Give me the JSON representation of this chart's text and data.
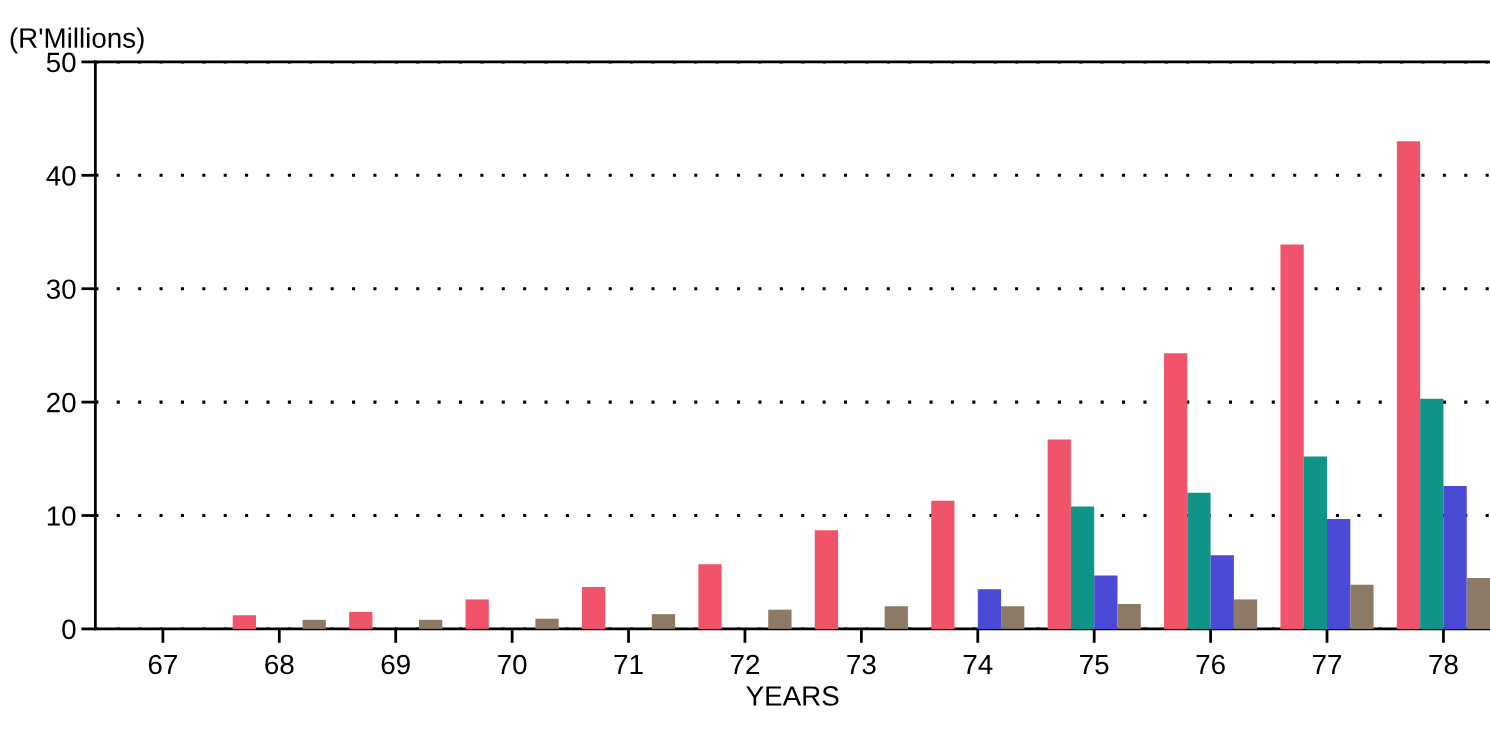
{
  "chart_data": {
    "type": "bar",
    "ylabel": "(R'Millions)",
    "xlabel": "YEARS",
    "categories": [
      "67",
      "68",
      "69",
      "70",
      "71",
      "72",
      "73",
      "74",
      "75",
      "76",
      "77",
      "78"
    ],
    "series": [
      {
        "color": "#f0546a",
        "values": [
          null,
          1.2,
          1.5,
          2.6,
          3.7,
          5.7,
          8.7,
          11.3,
          16.7,
          24.3,
          33.9,
          43.0
        ]
      },
      {
        "color": "#109488",
        "values": [
          null,
          null,
          null,
          null,
          null,
          null,
          null,
          null,
          10.8,
          12.0,
          15.2,
          20.3
        ]
      },
      {
        "color": "#4a4ad6",
        "values": [
          null,
          null,
          null,
          null,
          null,
          null,
          null,
          3.5,
          4.7,
          6.5,
          9.7,
          12.6
        ]
      },
      {
        "color": "#8c7a66",
        "values": [
          null,
          0.8,
          0.8,
          0.9,
          1.3,
          1.7,
          2.0,
          2.0,
          2.2,
          2.6,
          3.9,
          4.5
        ]
      }
    ],
    "ylim": [
      0,
      50
    ],
    "yticks": [
      0,
      10,
      20,
      30,
      40,
      50
    ],
    "grid": "y",
    "line_style": "dotted"
  }
}
